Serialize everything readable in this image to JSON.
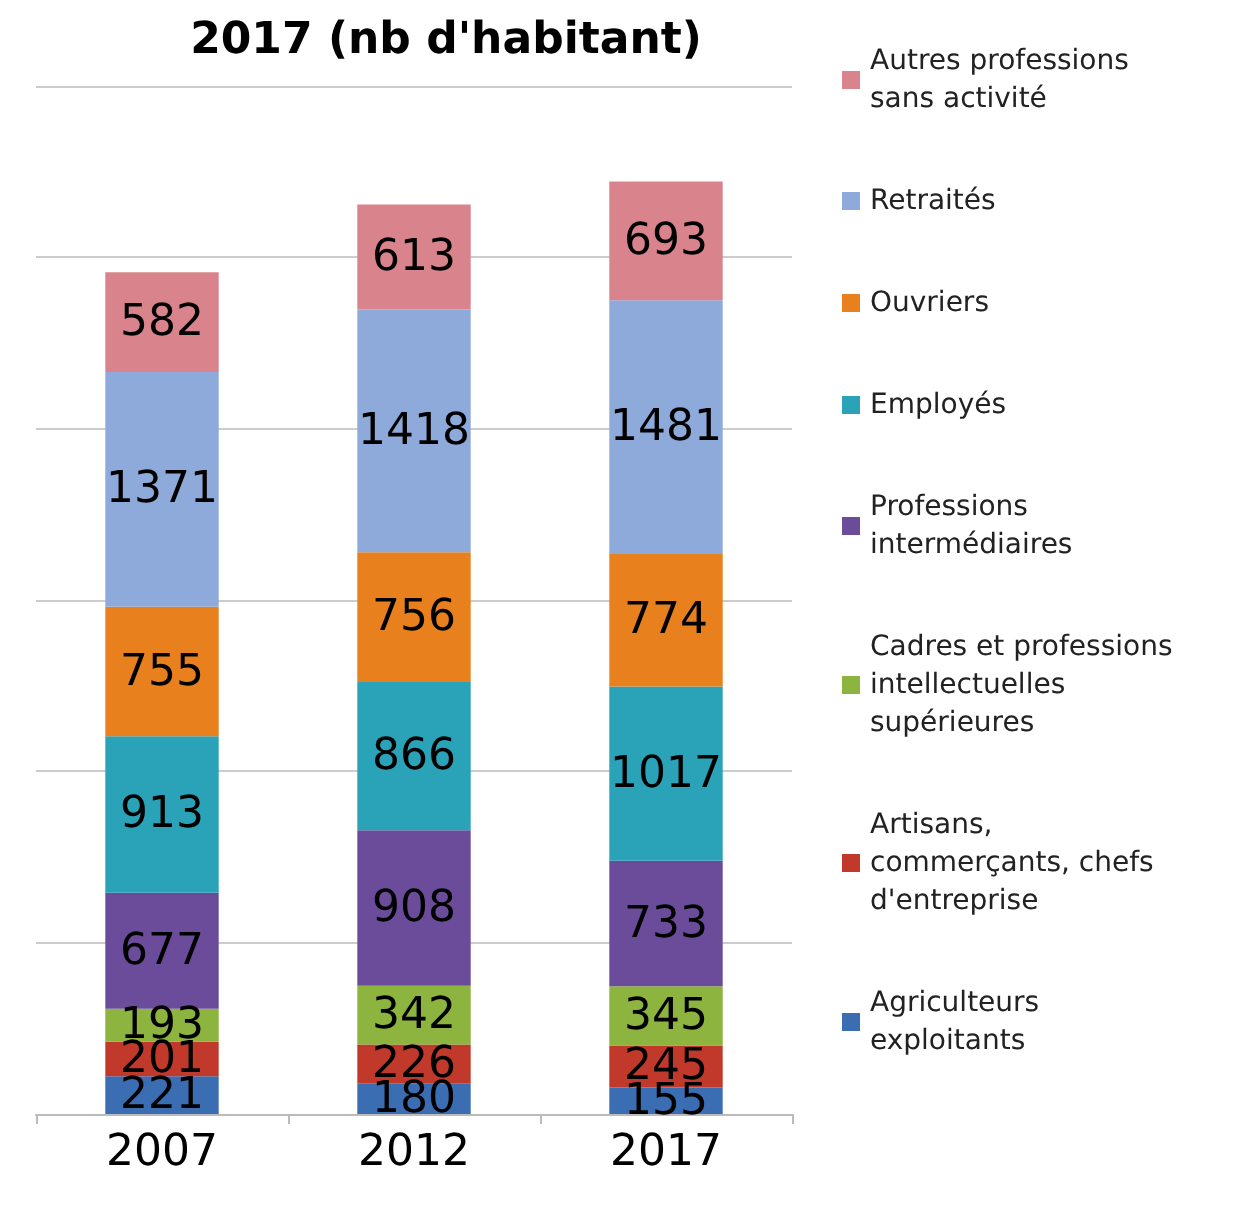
{
  "chart_data": {
    "type": "bar",
    "title": "2017 (nb d'habitant)",
    "categories": [
      "2007",
      "2012",
      "2017"
    ],
    "stacked": true,
    "data_labels": true,
    "grid": "y",
    "legend": "right",
    "tick_labels": "x",
    "ylim": [
      0,
      6000
    ],
    "yticks": [
      {
        "value": 0,
        "label": null
      },
      {
        "value": 1000,
        "label": null
      },
      {
        "value": 2000,
        "label": null
      },
      {
        "value": 3000,
        "label": null
      },
      {
        "value": 4000,
        "label": null
      },
      {
        "value": 5000,
        "label": null
      },
      {
        "value": 6000,
        "label": null
      }
    ],
    "series": [
      {
        "name": "Agriculteurs exploitants",
        "color": "#3b6db3",
        "values": [
          221,
          180,
          155
        ]
      },
      {
        "name": "Artisans, commerçants, chefs d'entreprise",
        "color": "#c0392b",
        "values": [
          201,
          226,
          245
        ]
      },
      {
        "name": "Cadres et professions intellectuelles supérieures",
        "color": "#8cb43f",
        "values": [
          193,
          342,
          345
        ]
      },
      {
        "name": "Professions intermédiaires",
        "color": "#6b4c9a",
        "values": [
          677,
          908,
          733
        ]
      },
      {
        "name": "Employés",
        "color": "#2aa3b8",
        "values": [
          913,
          866,
          1017
        ]
      },
      {
        "name": "Ouvriers",
        "color": "#e8801e",
        "values": [
          755,
          756,
          774
        ]
      },
      {
        "name": "Retraités",
        "color": "#8eaadb",
        "values": [
          1371,
          1418,
          1481
        ]
      },
      {
        "name": "Autres professions sans activité",
        "color": "#d9848c",
        "values": [
          582,
          613,
          693
        ]
      }
    ]
  }
}
